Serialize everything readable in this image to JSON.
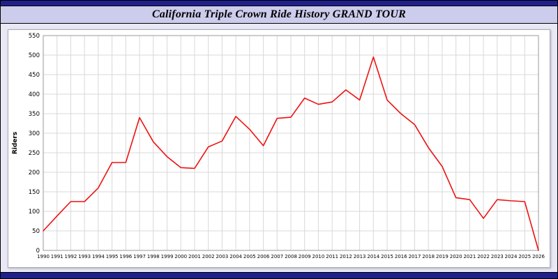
{
  "header": {
    "title": "California Triple Crown Ride History GRAND TOUR"
  },
  "theme": {
    "strip_color": "#20208c",
    "title_bg": "#ccccec",
    "page_bg": "#e9e9f5",
    "plot_bg": "#ffffff",
    "grid_color": "#d8d8d8",
    "axis_color": "#999999"
  },
  "chart_data": {
    "type": "line",
    "title": "California Triple Crown Ride History GRAND TOUR",
    "xlabel": "",
    "ylabel": "Riders",
    "ylim": [
      0,
      550
    ],
    "ytick_step": 50,
    "grid": true,
    "line_color": "#ee1111",
    "categories": [
      "1990",
      "1991",
      "1992",
      "1993",
      "1994",
      "1995",
      "1996",
      "1997",
      "1998",
      "1999",
      "2000",
      "2001",
      "2002",
      "2003",
      "2004",
      "2005",
      "2006",
      "2007",
      "2008",
      "2009",
      "2010",
      "2011",
      "2012",
      "2013",
      "2014",
      "2015",
      "2016",
      "2017",
      "2018",
      "2019",
      "2020",
      "2021",
      "2022",
      "2023",
      "2024",
      "2025",
      "2026"
    ],
    "series": [
      {
        "name": "Riders",
        "values": [
          50,
          88,
          125,
          125,
          160,
          225,
          225,
          340,
          278,
          240,
          212,
          210,
          265,
          280,
          343,
          310,
          268,
          338,
          341,
          390,
          374,
          380,
          411,
          385,
          495,
          385,
          350,
          322,
          263,
          215,
          135,
          130,
          82,
          130,
          127,
          125,
          0
        ]
      }
    ]
  }
}
